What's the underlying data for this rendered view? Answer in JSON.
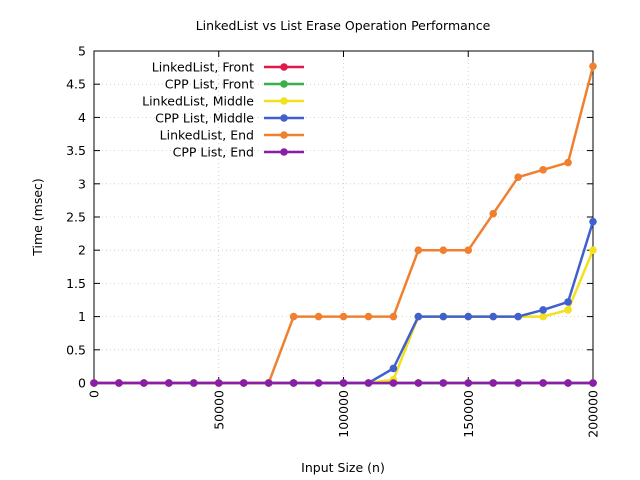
{
  "chart_data": {
    "type": "line",
    "title": "LinkedList vs List Erase Operation Performance",
    "xlabel": "Input Size (n)",
    "ylabel": "Time (msec)",
    "xlim": [
      0,
      200000
    ],
    "ylim": [
      0,
      5
    ],
    "grid": true,
    "legend_position": "top-left",
    "x_ticks": [
      0,
      50000,
      100000,
      150000,
      200000
    ],
    "x_tick_labels": [
      "0",
      "50000",
      "100000",
      "150000",
      "200000"
    ],
    "y_ticks": [
      0,
      0.5,
      1,
      1.5,
      2,
      2.5,
      3,
      3.5,
      4,
      4.5,
      5
    ],
    "y_tick_labels": [
      "0",
      "0.5",
      "1",
      "1.5",
      "2",
      "2.5",
      "3",
      "3.5",
      "4",
      "4.5",
      "5"
    ],
    "x": [
      0,
      10000,
      20000,
      30000,
      40000,
      50000,
      60000,
      70000,
      80000,
      90000,
      100000,
      110000,
      120000,
      130000,
      140000,
      150000,
      160000,
      170000,
      180000,
      190000,
      200000
    ],
    "series": [
      {
        "name": "LinkedList, Front",
        "color": "#e0194b",
        "values": [
          0,
          0,
          0,
          0,
          0,
          0,
          0,
          0,
          0,
          0,
          0,
          0,
          0,
          0,
          0,
          0,
          0,
          0,
          0,
          0,
          0
        ]
      },
      {
        "name": "CPP List, Front",
        "color": "#36b14a",
        "values": [
          0,
          0,
          0,
          0,
          0,
          0,
          0,
          0,
          0,
          0,
          0,
          0,
          0,
          0,
          0,
          0,
          0,
          0,
          0,
          0,
          0
        ]
      },
      {
        "name": "LinkedList, Middle",
        "color": "#f2e11c",
        "values": [
          0,
          0,
          0,
          0,
          0,
          0,
          0,
          0,
          0,
          0,
          0,
          0,
          0.05,
          1,
          1,
          1,
          1,
          1,
          1,
          1.1,
          2
        ]
      },
      {
        "name": "CPP List, Middle",
        "color": "#4060d0",
        "values": [
          0,
          0,
          0,
          0,
          0,
          0,
          0,
          0,
          0,
          0,
          0,
          0,
          0.22,
          1,
          1,
          1,
          1,
          1,
          1.1,
          1.22,
          2.43
        ]
      },
      {
        "name": "LinkedList, End",
        "color": "#f08030",
        "values": [
          0,
          0,
          0,
          0,
          0,
          0,
          0,
          0,
          1,
          1,
          1,
          1,
          1,
          2,
          2,
          2,
          2.55,
          3.1,
          3.21,
          3.32,
          4.77
        ]
      },
      {
        "name": "CPP List, End",
        "color": "#8a1ea8",
        "values": [
          0,
          0,
          0,
          0,
          0,
          0,
          0,
          0,
          0,
          0,
          0,
          0,
          0,
          0,
          0,
          0,
          0,
          0,
          0,
          0,
          0
        ]
      }
    ]
  }
}
